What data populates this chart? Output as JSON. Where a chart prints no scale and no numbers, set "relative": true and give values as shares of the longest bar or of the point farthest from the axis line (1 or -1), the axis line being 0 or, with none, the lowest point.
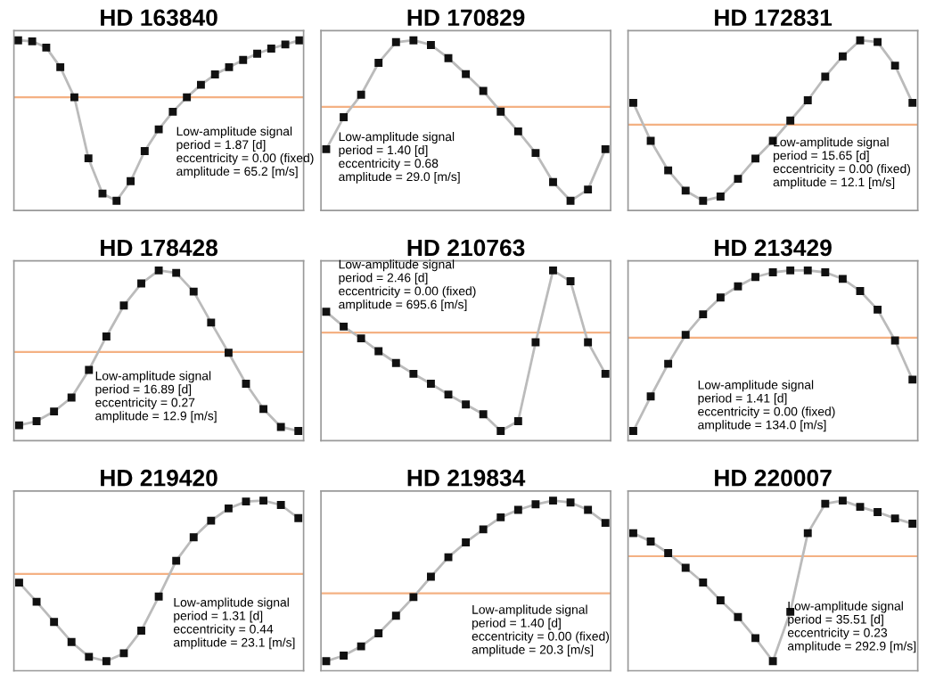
{
  "chart_data": [
    {
      "type": "line",
      "title": "HD 163840",
      "relative": true,
      "tick_labels": false,
      "marker": "square",
      "categories": [
        null,
        null,
        null,
        null,
        null,
        null,
        null,
        null,
        null,
        null,
        null,
        null,
        null,
        null,
        null,
        null,
        null,
        null,
        null,
        null,
        null
      ],
      "series": [
        {
          "color": "#bbbbbb",
          "values": [
            0.55,
            0.54,
            0.48,
            0.29,
            0,
            -0.59,
            -0.93,
            -1,
            -0.81,
            -0.52,
            -0.31,
            -0.14,
            0,
            0.12,
            0.22,
            0.29,
            0.36,
            0.42,
            0.47,
            0.51,
            0.55
          ]
        }
      ],
      "ref_lines": [
        {
          "axis": "y",
          "value": 0,
          "color": "#f4b183"
        }
      ],
      "annotations": [
        "Low-amplitude signal\nperiod = 1.87 [d]\neccentricity = 0.00 (fixed)\namplitude = 65.2 [m/s]"
      ]
    },
    {
      "type": "line",
      "title": "HD 170829",
      "relative": true,
      "tick_labels": false,
      "marker": "square",
      "categories": [
        null,
        null,
        null,
        null,
        null,
        null,
        null,
        null,
        null,
        null,
        null,
        null,
        null,
        null,
        null,
        null,
        null
      ],
      "series": [
        {
          "color": "#bbbbbb",
          "values": [
            -0.45,
            -0.11,
            0.13,
            0.47,
            0.69,
            0.71,
            0.66,
            0.52,
            0.35,
            0.17,
            -0.05,
            -0.26,
            -0.49,
            -0.8,
            -1,
            -0.88,
            -0.45
          ]
        }
      ],
      "ref_lines": [
        {
          "axis": "y",
          "value": 0,
          "color": "#f4b183"
        }
      ],
      "annotations": [
        "Low-amplitude signal\nperiod = 1.40 [d]\neccentricity = 0.68\namplitude = 29.0 [m/s]"
      ]
    },
    {
      "type": "line",
      "title": "HD 172831",
      "relative": true,
      "tick_labels": false,
      "marker": "square",
      "categories": [
        null,
        null,
        null,
        null,
        null,
        null,
        null,
        null,
        null,
        null,
        null,
        null,
        null,
        null,
        null,
        null,
        null
      ],
      "series": [
        {
          "color": "#bbbbbb",
          "values": [
            0.26,
            -0.19,
            -0.54,
            -0.78,
            -0.9,
            -0.85,
            -0.64,
            -0.4,
            -0.19,
            0.05,
            0.29,
            0.57,
            0.81,
            1,
            0.98,
            0.7,
            0.26
          ]
        }
      ],
      "ref_lines": [
        {
          "axis": "y",
          "value": 0,
          "color": "#f4b183"
        }
      ],
      "annotations": [
        "Low-amplitude signal\nperiod = 15.65 [d]\neccentricity = 0.00 (fixed)\namplitude = 12.1 [m/s]"
      ]
    },
    {
      "type": "line",
      "title": "HD 178428",
      "relative": true,
      "tick_labels": false,
      "marker": "square",
      "categories": [
        null,
        null,
        null,
        null,
        null,
        null,
        null,
        null,
        null,
        null,
        null,
        null,
        null,
        null,
        null,
        null,
        null
      ],
      "series": [
        {
          "color": "#bbbbbb",
          "values": [
            -0.9,
            -0.85,
            -0.73,
            -0.56,
            -0.22,
            0.19,
            0.57,
            0.84,
            1,
            0.97,
            0.74,
            0.36,
            -0.01,
            -0.39,
            -0.7,
            -0.92,
            -0.97
          ]
        }
      ],
      "ref_lines": [
        {
          "axis": "y",
          "value": 0,
          "color": "#f4b183"
        }
      ],
      "annotations": [
        "Low-amplitude signal\nperiod = 16.89 [d]\neccentricity = 0.27\namplitude = 12.9 [m/s]"
      ]
    },
    {
      "type": "line",
      "title": "HD 210763",
      "relative": true,
      "tick_labels": false,
      "marker": "square",
      "categories": [
        null,
        null,
        null,
        null,
        null,
        null,
        null,
        null,
        null,
        null,
        null,
        null,
        null,
        null,
        null,
        null,
        null
      ],
      "series": [
        {
          "color": "#bbbbbb",
          "values": [
            0.21,
            0.06,
            -0.06,
            -0.19,
            -0.31,
            -0.42,
            -0.52,
            -0.63,
            -0.73,
            -0.83,
            -1,
            -0.9,
            -0.1,
            0.63,
            0.52,
            -0.1,
            -0.42
          ]
        }
      ],
      "ref_lines": [
        {
          "axis": "y",
          "value": 0,
          "color": "#f4b183"
        }
      ],
      "annotations": [
        "Low-amplitude signal\nperiod = 2.46 [d]\neccentricity = 0.00 (fixed)\namplitude = 695.6 [m/s]"
      ]
    },
    {
      "type": "line",
      "title": "HD 213429",
      "relative": true,
      "tick_labels": false,
      "marker": "square",
      "categories": [
        null,
        null,
        null,
        null,
        null,
        null,
        null,
        null,
        null,
        null,
        null,
        null,
        null,
        null,
        null,
        null,
        null
      ],
      "series": [
        {
          "color": "#bbbbbb",
          "values": [
            -1,
            -0.63,
            -0.28,
            0.03,
            0.25,
            0.43,
            0.55,
            0.65,
            0.7,
            0.72,
            0.72,
            0.7,
            0.63,
            0.5,
            0.3,
            -0.03,
            -0.45
          ]
        }
      ],
      "ref_lines": [
        {
          "axis": "y",
          "value": 0,
          "color": "#f4b183"
        }
      ],
      "annotations": [
        "Low-amplitude signal\nperiod = 1.41 [d]\neccentricity = 0.00 (fixed)\namplitude = 134.0 [m/s]"
      ]
    },
    {
      "type": "line",
      "title": "HD 219420",
      "relative": true,
      "tick_labels": false,
      "marker": "square",
      "categories": [
        null,
        null,
        null,
        null,
        null,
        null,
        null,
        null,
        null,
        null,
        null,
        null,
        null,
        null,
        null,
        null,
        null
      ],
      "series": [
        {
          "color": "#bbbbbb",
          "values": [
            -0.1,
            -0.32,
            -0.55,
            -0.78,
            -0.95,
            -1,
            -0.91,
            -0.65,
            -0.26,
            0.15,
            0.42,
            0.61,
            0.75,
            0.83,
            0.84,
            0.79,
            0.64
          ]
        }
      ],
      "ref_lines": [
        {
          "axis": "y",
          "value": 0,
          "color": "#f4b183"
        }
      ],
      "annotations": [
        "Low-amplitude signal\nperiod = 1.31 [d]\neccentricity = 0.44\namplitude = 23.1 [m/s]"
      ]
    },
    {
      "type": "line",
      "title": "HD 219834",
      "relative": true,
      "tick_labels": false,
      "marker": "square",
      "categories": [
        null,
        null,
        null,
        null,
        null,
        null,
        null,
        null,
        null,
        null,
        null,
        null,
        null,
        null,
        null,
        null,
        null
      ],
      "series": [
        {
          "color": "#bbbbbb",
          "values": [
            -0.73,
            -0.67,
            -0.57,
            -0.43,
            -0.24,
            -0.04,
            0.18,
            0.39,
            0.55,
            0.69,
            0.82,
            0.9,
            0.96,
            1,
            0.98,
            0.9,
            0.76
          ]
        }
      ],
      "ref_lines": [
        {
          "axis": "y",
          "value": 0,
          "color": "#f4b183"
        }
      ],
      "annotations": [
        "Low-amplitude signal\nperiod = 1.40 [d]\neccentricity = 0.00 (fixed)\namplitude = 20.3 [m/s]"
      ]
    },
    {
      "type": "line",
      "title": "HD 220007",
      "relative": true,
      "tick_labels": false,
      "marker": "square",
      "categories": [
        null,
        null,
        null,
        null,
        null,
        null,
        null,
        null,
        null,
        null,
        null,
        null,
        null,
        null,
        null,
        null,
        null
      ],
      "series": [
        {
          "color": "#bbbbbb",
          "values": [
            0.22,
            0.14,
            0.03,
            -0.11,
            -0.25,
            -0.42,
            -0.58,
            -0.78,
            -1,
            -0.53,
            0.22,
            0.5,
            0.53,
            0.47,
            0.42,
            0.36,
            0.31
          ]
        }
      ],
      "ref_lines": [
        {
          "axis": "y",
          "value": 0,
          "color": "#f4b183"
        }
      ],
      "annotations": [
        "Low-amplitude signal\nperiod = 35.51 [d]\neccentricity = 0.23\namplitude = 292.9 [m/s]"
      ]
    }
  ]
}
